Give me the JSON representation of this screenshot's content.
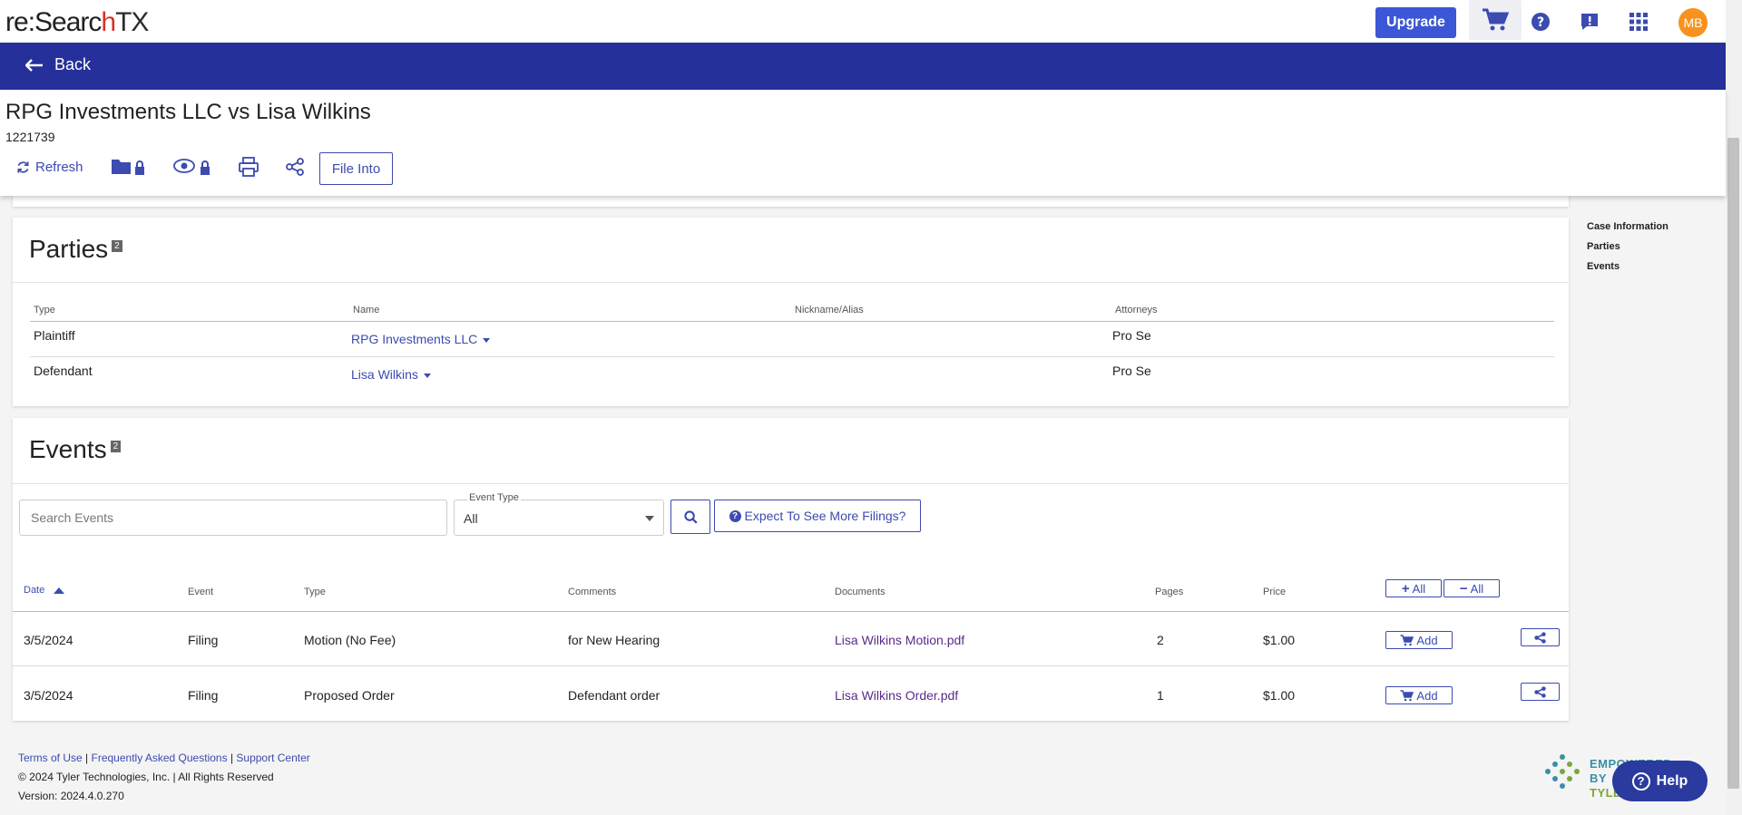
{
  "brand": {
    "logo_part1": "re",
    "logo_colon": ":",
    "logo_part2": "Searc",
    "logo_q": "h",
    "logo_tx": "TX"
  },
  "topbar": {
    "upgrade_label": "Upgrade",
    "avatar_initials": "MB"
  },
  "nav": {
    "back_label": "Back"
  },
  "case": {
    "title": "RPG Investments LLC vs Lisa Wilkins",
    "number": "1221739"
  },
  "toolbar": {
    "refresh_label": "Refresh",
    "file_into_label": "File Into"
  },
  "parties": {
    "title": "Parties",
    "count": "2",
    "columns": [
      "Type",
      "Name",
      "Nickname/Alias",
      "Attorneys"
    ],
    "rows": [
      {
        "type": "Plaintiff",
        "name": "RPG Investments LLC",
        "alias": "",
        "attorneys": "Pro Se"
      },
      {
        "type": "Defendant",
        "name": "Lisa Wilkins",
        "alias": "",
        "attorneys": "Pro Se"
      }
    ]
  },
  "events": {
    "title": "Events",
    "count": "2",
    "search_placeholder": "Search Events",
    "event_type_label": "Event Type",
    "event_type_value": "All",
    "expect_label": "Expect To See More Filings?",
    "add_all_label": "All",
    "remove_all_label": "All",
    "columns": [
      "Date",
      "Event",
      "Type",
      "Comments",
      "Documents",
      "Pages",
      "Price"
    ],
    "add_label": "Add",
    "rows": [
      {
        "date": "3/5/2024",
        "event": "Filing",
        "type": "Motion (No Fee)",
        "comments": "for New Hearing",
        "document": "Lisa Wilkins Motion.pdf",
        "pages": "2",
        "price": "$1.00"
      },
      {
        "date": "3/5/2024",
        "event": "Filing",
        "type": "Proposed Order",
        "comments": "Defendant order",
        "document": "Lisa Wilkins Order.pdf",
        "pages": "1",
        "price": "$1.00"
      }
    ]
  },
  "rightnav": {
    "items": [
      "Case Information",
      "Parties",
      "Events"
    ]
  },
  "footer": {
    "terms": "Terms of Use",
    "faq": "Frequently Asked Questions",
    "support": "Support Center",
    "separator": "|",
    "copyright": "© 2024 Tyler Technologies, Inc. | All Rights Reserved",
    "version": "Version: 2024.4.0.270",
    "empowered_line1": "EMPOWERED BY",
    "empowered_line2": "TYLER",
    "help_label": "Help"
  },
  "colors": {
    "accent": "#3b57d6",
    "nav": "#25309a",
    "link": "#3b4bb0",
    "avatar": "#f7921e"
  }
}
